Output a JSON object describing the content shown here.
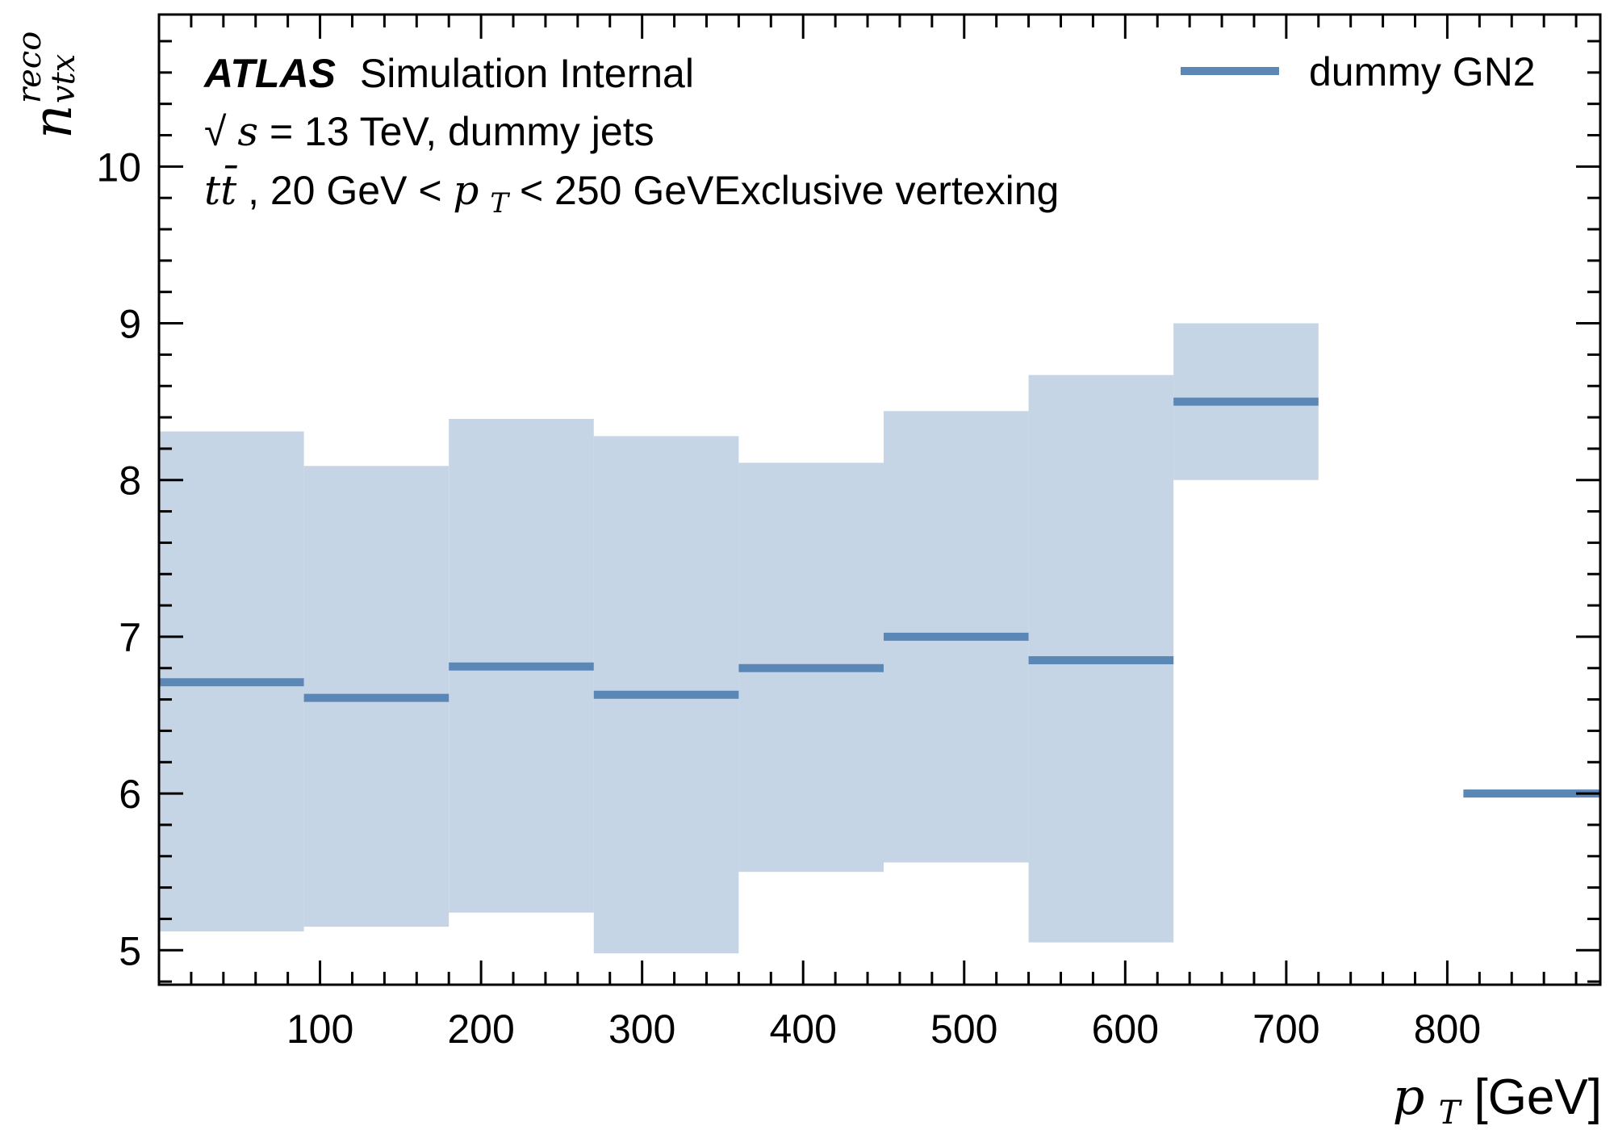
{
  "colors": {
    "line": "#5b87b7",
    "band": "#c6d5e5",
    "frame": "#000000"
  },
  "atlas": {
    "brand": "ATLAS",
    "status": "Simulation Internal",
    "line2_prefix": "√",
    "line2_s": "s",
    "line2_rest": " = 13 TeV, dummy jets",
    "line3_tt": "tt̄",
    "line3_mid": ", 20 GeV  < ",
    "line3_p": "p",
    "line3_sub": "T",
    "line3_end": " < 250 GeVExclusive vertexing"
  },
  "chart_data": {
    "type": "line",
    "style": "step-with-uncertainty-band",
    "xlabel": {
      "main": "p",
      "sub": "T",
      "unit": " [GeV]"
    },
    "ylabel": {
      "main": "n",
      "sup": "reco",
      "sub": "vtx"
    },
    "xlim": [
      0,
      895
    ],
    "ylim": [
      4.78,
      10.97
    ],
    "x_ticks": [
      100,
      200,
      300,
      400,
      500,
      600,
      700,
      800
    ],
    "y_ticks": [
      5,
      6,
      7,
      8,
      9,
      10
    ],
    "x_minor_step": 20,
    "y_minor_step": 0.2,
    "grid": false,
    "legend": {
      "position": "top-right"
    },
    "series": [
      {
        "name": "dummy GN2",
        "bins": [
          {
            "x_low": 0,
            "x_high": 90,
            "value": 6.71,
            "band_low": 5.12,
            "band_high": 8.31
          },
          {
            "x_low": 90,
            "x_high": 180,
            "value": 6.61,
            "band_low": 5.15,
            "band_high": 8.09
          },
          {
            "x_low": 180,
            "x_high": 270,
            "value": 6.81,
            "band_low": 5.24,
            "band_high": 8.39
          },
          {
            "x_low": 270,
            "x_high": 360,
            "value": 6.63,
            "band_low": 4.98,
            "band_high": 8.28
          },
          {
            "x_low": 360,
            "x_high": 450,
            "value": 6.8,
            "band_low": 5.5,
            "band_high": 8.11
          },
          {
            "x_low": 450,
            "x_high": 540,
            "value": 7.0,
            "band_low": 5.56,
            "band_high": 8.44
          },
          {
            "x_low": 540,
            "x_high": 630,
            "value": 6.85,
            "band_low": 5.05,
            "band_high": 8.67
          },
          {
            "x_low": 630,
            "x_high": 720,
            "value": 8.5,
            "band_low": 8.0,
            "band_high": 9.0
          },
          {
            "x_low": 810,
            "x_high": 900,
            "value": 6.0,
            "band_low": 6.0,
            "band_high": 6.0
          }
        ]
      }
    ]
  }
}
